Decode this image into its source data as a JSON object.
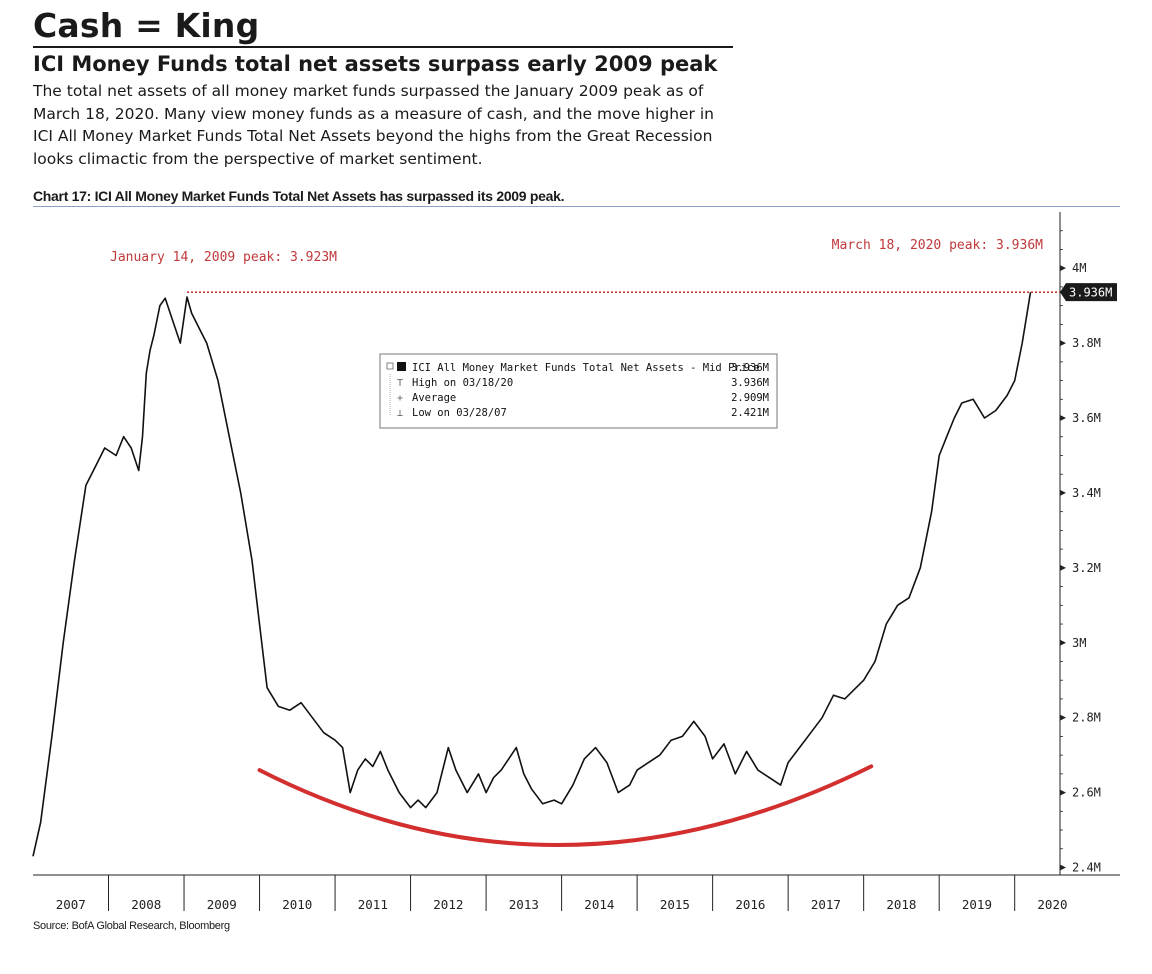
{
  "header": {
    "title": "Cash = King",
    "subtitle": "ICI Money Funds total net assets surpass early 2009 peak",
    "body_lines": [
      "The total net assets of all money market funds surpassed the January 2009 peak as of",
      "March 18, 2020. Many view money funds as a measure of cash, and the move higher in",
      "ICI All Money Market Funds Total Net Assets beyond the highs from the Great Recession",
      "looks climactic from the perspective of market sentiment."
    ],
    "chart_caption": "Chart 17: ICI All Money Market Funds Total Net Assets has surpassed its 2009 peak."
  },
  "source": "Source: BofA Global Research, Bloomberg",
  "colors": {
    "line": "#111111",
    "peak": "#c0393b",
    "arc": "#d32f2f",
    "axis": "#222222",
    "last_value_bg": "#1a1a1a"
  },
  "chart_data": {
    "type": "line",
    "series": [
      {
        "name": "ICI All Money Market Funds Total Net Assets - Mid Price",
        "unit": "M",
        "x": [
          2007.0,
          2007.1,
          2007.25,
          2007.4,
          2007.55,
          2007.7,
          2007.85,
          2007.95,
          2008.1,
          2008.2,
          2008.3,
          2008.4,
          2008.45,
          2008.5,
          2008.55,
          2008.6,
          2008.68,
          2008.75,
          2008.85,
          2008.95,
          2009.04,
          2009.1,
          2009.2,
          2009.3,
          2009.45,
          2009.6,
          2009.75,
          2009.9,
          2010.0,
          2010.1,
          2010.25,
          2010.4,
          2010.55,
          2010.7,
          2010.85,
          2011.0,
          2011.1,
          2011.2,
          2011.3,
          2011.4,
          2011.5,
          2011.6,
          2011.7,
          2011.85,
          2012.0,
          2012.1,
          2012.2,
          2012.35,
          2012.5,
          2012.6,
          2012.75,
          2012.9,
          2013.0,
          2013.1,
          2013.2,
          2013.3,
          2013.4,
          2013.5,
          2013.6,
          2013.75,
          2013.9,
          2014.0,
          2014.15,
          2014.3,
          2014.45,
          2014.6,
          2014.75,
          2014.9,
          2015.0,
          2015.15,
          2015.3,
          2015.45,
          2015.6,
          2015.75,
          2015.9,
          2016.0,
          2016.15,
          2016.3,
          2016.45,
          2016.6,
          2016.75,
          2016.9,
          2017.0,
          2017.15,
          2017.3,
          2017.45,
          2017.6,
          2017.75,
          2017.9,
          2018.0,
          2018.15,
          2018.3,
          2018.45,
          2018.6,
          2018.75,
          2018.9,
          2019.0,
          2019.1,
          2019.2,
          2019.3,
          2019.45,
          2019.6,
          2019.75,
          2019.9,
          2020.0,
          2020.1,
          2020.21
        ],
        "y": [
          2.43,
          2.52,
          2.75,
          3.0,
          3.22,
          3.42,
          3.48,
          3.52,
          3.5,
          3.55,
          3.52,
          3.46,
          3.55,
          3.72,
          3.78,
          3.82,
          3.9,
          3.92,
          3.86,
          3.8,
          3.923,
          3.88,
          3.84,
          3.8,
          3.7,
          3.55,
          3.4,
          3.22,
          3.05,
          2.88,
          2.83,
          2.82,
          2.84,
          2.8,
          2.76,
          2.74,
          2.72,
          2.6,
          2.66,
          2.69,
          2.67,
          2.71,
          2.66,
          2.6,
          2.56,
          2.58,
          2.56,
          2.6,
          2.72,
          2.66,
          2.6,
          2.65,
          2.6,
          2.64,
          2.66,
          2.69,
          2.72,
          2.65,
          2.61,
          2.57,
          2.58,
          2.57,
          2.62,
          2.69,
          2.72,
          2.68,
          2.6,
          2.62,
          2.66,
          2.68,
          2.7,
          2.74,
          2.75,
          2.79,
          2.75,
          2.69,
          2.73,
          2.65,
          2.71,
          2.66,
          2.64,
          2.62,
          2.68,
          2.72,
          2.76,
          2.8,
          2.86,
          2.85,
          2.88,
          2.9,
          2.95,
          3.05,
          3.1,
          3.12,
          3.2,
          3.35,
          3.5,
          3.55,
          3.6,
          3.64,
          3.65,
          3.6,
          3.62,
          3.66,
          3.7,
          3.8,
          3.936
        ]
      }
    ],
    "x_ticks": [
      2007,
      2008,
      2009,
      2010,
      2011,
      2012,
      2013,
      2014,
      2015,
      2016,
      2017,
      2018,
      2019,
      2020
    ],
    "y_ticks": [
      "2.4M",
      "2.6M",
      "2.8M",
      "3M",
      "3.2M",
      "3.4M",
      "3.6M",
      "3.8M",
      "4M"
    ],
    "y_tick_values": [
      2.4,
      2.6,
      2.8,
      3.0,
      3.2,
      3.4,
      3.6,
      3.8,
      4.0
    ],
    "xlim": [
      2007,
      2020.6
    ],
    "ylim": [
      2.38,
      4.15
    ],
    "y_axis_side": "right",
    "last_value_label": "3.936M",
    "annotations": {
      "peak_2009": {
        "text": "January 14, 2009 peak: 3.923M",
        "x": 2009.04,
        "y": 3.923
      },
      "peak_2020": {
        "text": "March 18, 2020 peak: 3.936M",
        "x": 2020.21,
        "y": 3.936
      },
      "reference_line": 3.936,
      "trough_arc": {
        "x": [
          2010.0,
          2014.0,
          2018.1
        ],
        "y": [
          2.66,
          2.46,
          2.67
        ]
      }
    },
    "legend": {
      "placement": "top-center",
      "rows": [
        {
          "label": "ICI All Money Market Funds Total Net Assets - Mid Price",
          "value": "3.936M"
        },
        {
          "label": "High on 03/18/20",
          "value": "3.936M"
        },
        {
          "label": "Average",
          "value": "2.909M"
        },
        {
          "label": "Low on 03/28/07",
          "value": "2.421M"
        }
      ]
    }
  }
}
